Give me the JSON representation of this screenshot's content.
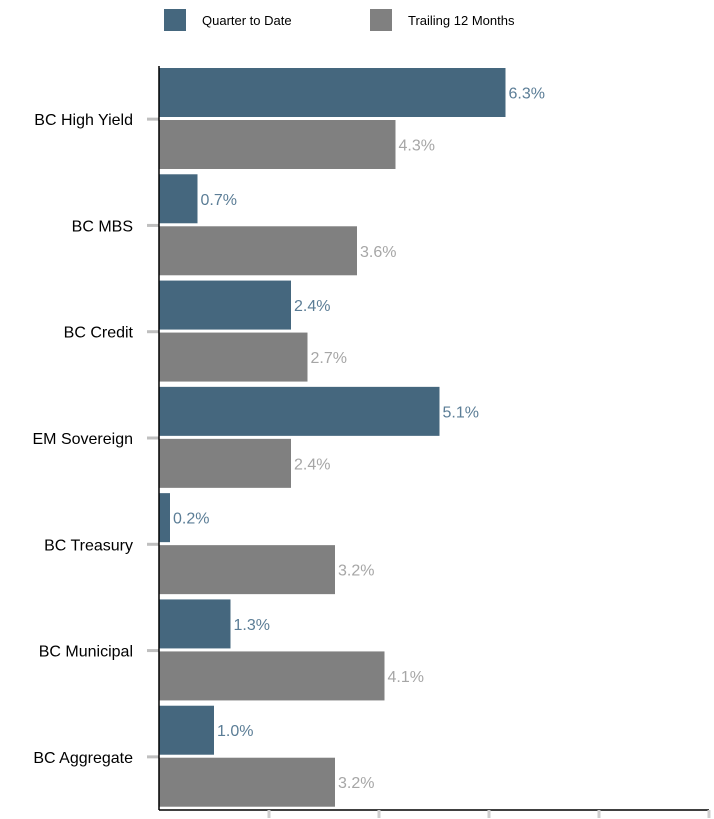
{
  "chart_data": {
    "type": "bar",
    "orientation": "horizontal",
    "categories": [
      "BC High Yield",
      "BC MBS",
      "BC Credit",
      "EM Sovereign",
      "BC Treasury",
      "BC Municipal",
      "BC Aggregate"
    ],
    "series": [
      {
        "name": "Quarter to Date",
        "color": "#45677e",
        "values": [
          6.3,
          0.7,
          2.4,
          5.1,
          0.2,
          1.3,
          1.0
        ],
        "labels": [
          "6.3%",
          "0.7%",
          "2.4%",
          "5.1%",
          "0.2%",
          "1.3%",
          "1.0%"
        ],
        "label_color": "#5b7d96"
      },
      {
        "name": "Trailing 12 Months",
        "color": "#808080",
        "values": [
          4.3,
          3.6,
          2.7,
          2.4,
          3.2,
          4.1,
          3.2
        ],
        "labels": [
          "4.3%",
          "3.6%",
          "2.7%",
          "2.4%",
          "3.2%",
          "4.1%",
          "3.2%"
        ],
        "label_color": "#a6a6a6"
      }
    ],
    "xlim": [
      0,
      10
    ],
    "x_tick_step": 2,
    "legend": "top-left",
    "grid": false,
    "title": "",
    "xlabel": "",
    "ylabel": ""
  }
}
